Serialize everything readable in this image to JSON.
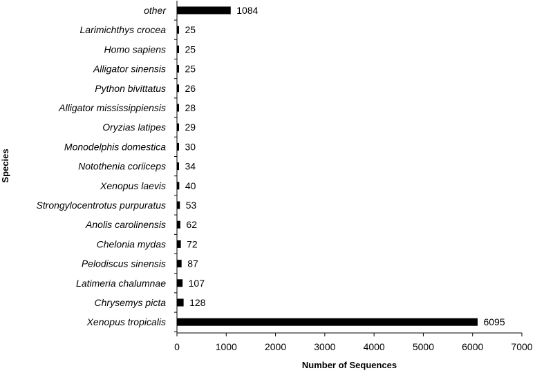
{
  "chart_data": {
    "type": "bar",
    "orientation": "horizontal",
    "xlabel": "Number of Sequences",
    "ylabel": "Species",
    "xlim": [
      0,
      7000
    ],
    "xticks": [
      "0",
      "1000",
      "2000",
      "3000",
      "4000",
      "5000",
      "6000",
      "7000"
    ],
    "bar_color": "#000000",
    "grid": false,
    "legend": "none",
    "categories": [
      "other",
      "Larimichthys crocea",
      "Homo sapiens",
      "Alligator sinensis",
      "Python bivittatus",
      "Alligator mississippiensis",
      "Oryzias latipes",
      "Monodelphis domestica",
      "Notothenia coriiceps",
      "Xenopus laevis",
      "Strongylocentrotus purpuratus",
      "Anolis carolinensis",
      "Chelonia mydas",
      "Pelodiscus sinensis",
      "Latimeria chalumnae",
      "Chrysemys picta",
      "Xenopus tropicalis"
    ],
    "values": [
      1084,
      25,
      25,
      25,
      26,
      28,
      29,
      30,
      34,
      40,
      53,
      62,
      72,
      87,
      107,
      128,
      6095
    ],
    "value_labels": [
      "1084",
      "25",
      "25",
      "25",
      "26",
      "28",
      "29",
      "30",
      "34",
      "40",
      "53",
      "62",
      "72",
      "87",
      "107",
      "128",
      "6095"
    ]
  }
}
